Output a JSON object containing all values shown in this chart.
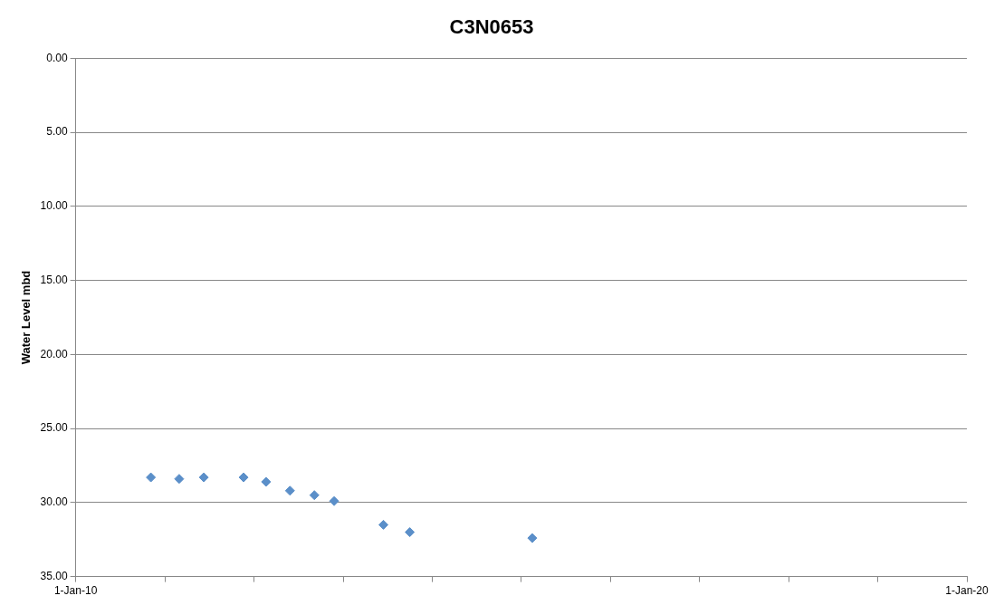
{
  "chart_data": {
    "type": "scatter",
    "title": "C3N0653",
    "ylabel": "Water Level mbd",
    "x": [
      "2010-11-05",
      "2011-03-01",
      "2011-06-10",
      "2011-11-20",
      "2012-02-20",
      "2012-05-28",
      "2012-09-05",
      "2012-11-25",
      "2013-06-15",
      "2013-10-01",
      "2015-02-15"
    ],
    "series": [
      {
        "color": "#5b8fc9",
        "values": [
          28.3,
          28.4,
          28.3,
          28.3,
          28.6,
          29.2,
          29.5,
          29.9,
          31.5,
          32.0,
          32.4
        ]
      }
    ],
    "xlim": [
      "2010-01-01",
      "2020-01-01"
    ],
    "xticks": [
      {
        "value": "2010-01-01",
        "label": "1-Jan-10"
      },
      {
        "value": "2011-01-01",
        "label": null
      },
      {
        "value": "2012-01-01",
        "label": null
      },
      {
        "value": "2013-01-01",
        "label": null
      },
      {
        "value": "2014-01-01",
        "label": null
      },
      {
        "value": "2015-01-01",
        "label": null
      },
      {
        "value": "2016-01-01",
        "label": null
      },
      {
        "value": "2017-01-01",
        "label": null
      },
      {
        "value": "2018-01-01",
        "label": null
      },
      {
        "value": "2019-01-01",
        "label": null
      },
      {
        "value": "2020-01-01",
        "label": "1-Jan-20"
      }
    ],
    "ylim": [
      35,
      0
    ],
    "yticks": [
      {
        "value": 0,
        "label": "0.00"
      },
      {
        "value": 5,
        "label": "5.00"
      },
      {
        "value": 10,
        "label": "10.00"
      },
      {
        "value": 15,
        "label": "15.00"
      },
      {
        "value": 20,
        "label": "20.00"
      },
      {
        "value": 25,
        "label": "25.00"
      },
      {
        "value": 30,
        "label": "30.00"
      },
      {
        "value": 35,
        "label": "35.00"
      }
    ],
    "grid": "y",
    "marker": "diamond",
    "legend": false
  }
}
